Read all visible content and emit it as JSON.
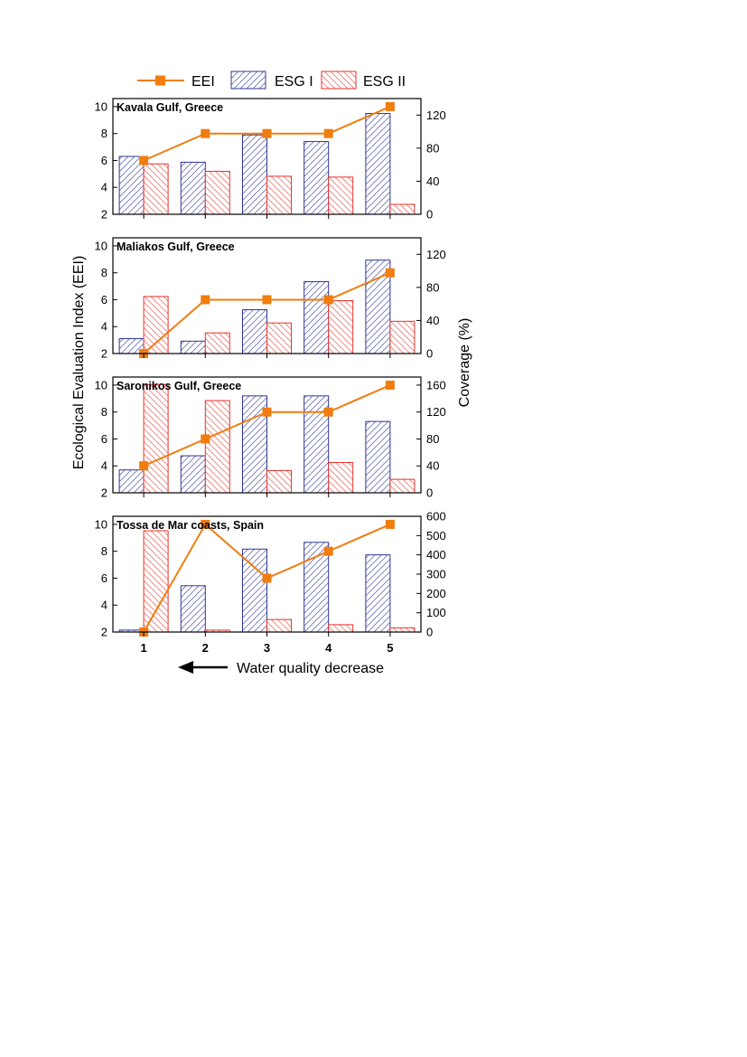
{
  "chart_data": {
    "type": "bar",
    "legend": [
      {
        "key": "eei",
        "label": "EEI",
        "color": "#f07d0e"
      },
      {
        "key": "esg1",
        "label": "ESG I",
        "color": "#2f3595"
      },
      {
        "key": "esg2",
        "label": "ESG II",
        "color": "#e8322a"
      }
    ],
    "categories": [
      "1",
      "2",
      "3",
      "4",
      "5"
    ],
    "ylabel_left": "Ecological Evaluation Index (EEI)",
    "ylabel_right": "Coverage (%)",
    "xlabel": "Water quality decrease",
    "panels": [
      {
        "title": "Kavala Gulf, Greece",
        "y_left": {
          "min": 2,
          "max": 10.6,
          "ticks": [
            2,
            4,
            6,
            8,
            10
          ]
        },
        "y_right": {
          "min": 0,
          "max": 140,
          "ticks": [
            0,
            40,
            80,
            120
          ]
        },
        "eei": [
          6,
          8,
          8,
          8,
          10
        ],
        "esg1": [
          70,
          63,
          96,
          88,
          122
        ],
        "esg2": [
          61,
          52,
          46,
          45,
          12
        ]
      },
      {
        "title": "Maliakos Gulf, Greece",
        "y_left": {
          "min": 2,
          "max": 10.6,
          "ticks": [
            2,
            4,
            6,
            8,
            10
          ]
        },
        "y_right": {
          "min": 0,
          "max": 140,
          "ticks": [
            0,
            40,
            80,
            120
          ]
        },
        "eei": [
          2,
          6,
          6,
          6,
          8
        ],
        "esg1": [
          18,
          15,
          53,
          87,
          113
        ],
        "esg2": [
          69,
          25,
          37,
          64,
          39
        ]
      },
      {
        "title": "Saronikos Gulf, Greece",
        "y_left": {
          "min": 2,
          "max": 10.6,
          "ticks": [
            2,
            4,
            6,
            8,
            10
          ]
        },
        "y_right": {
          "min": 0,
          "max": 172,
          "ticks": [
            0,
            40,
            80,
            120,
            160
          ]
        },
        "eei": [
          4,
          6,
          8,
          8,
          10
        ],
        "esg1": [
          34,
          55,
          144,
          144,
          106
        ],
        "esg2": [
          161,
          137,
          33,
          45,
          20
        ]
      },
      {
        "title": "Tossa de Mar coasts, Spain",
        "y_left": {
          "min": 2,
          "max": 10.6,
          "ticks": [
            2,
            4,
            6,
            8,
            10
          ]
        },
        "y_right": {
          "min": 0,
          "max": 600,
          "ticks": [
            0,
            100,
            200,
            300,
            400,
            500,
            600
          ]
        },
        "eei": [
          2,
          10,
          6,
          8,
          10
        ],
        "esg1": [
          10,
          240,
          430,
          465,
          400
        ],
        "esg2": [
          525,
          10,
          65,
          38,
          22
        ]
      }
    ]
  }
}
